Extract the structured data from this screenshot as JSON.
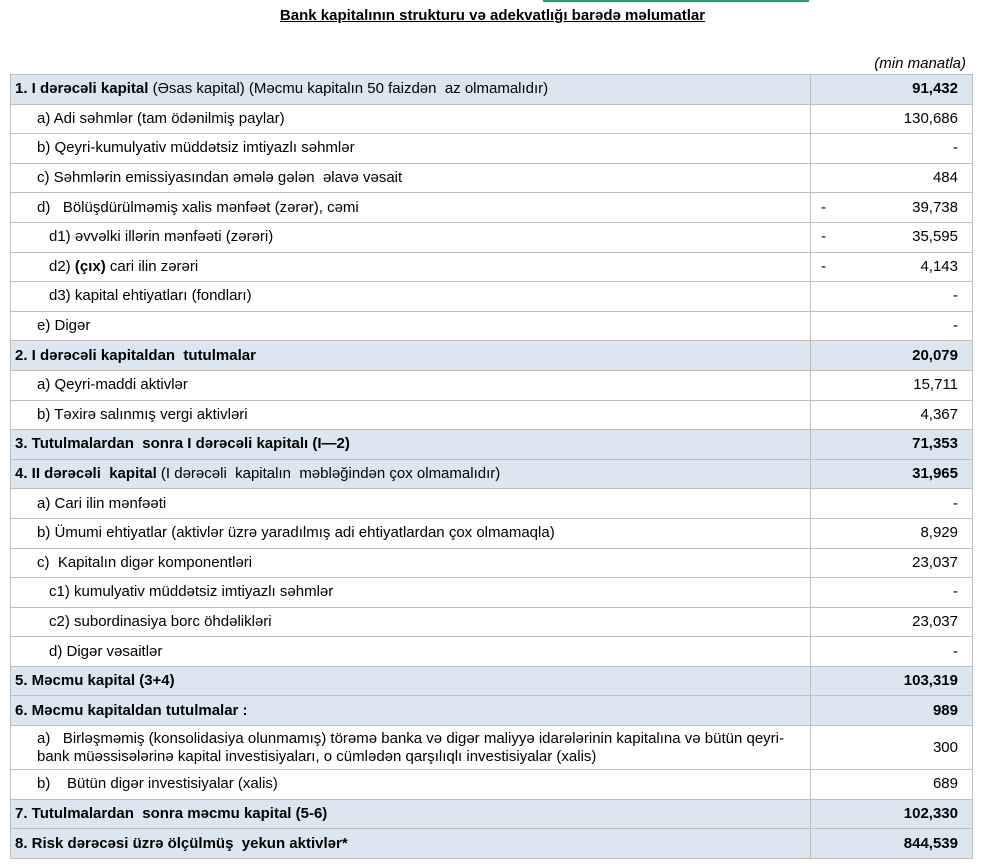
{
  "header": {
    "title": "Bank kapitalının strukturu və adekvatlığı barədə məlumatlar",
    "unit": "(min manatla)"
  },
  "table": {
    "rows": [
      {
        "total": true,
        "label": [
          {
            "text": "1. I dərəcəli kapital",
            "bold": true
          },
          {
            "text": " (Əsas kapital) (Məcmu kapitalın 50 faizdən  az olmamalıdır)"
          }
        ],
        "value": "91,432"
      },
      {
        "label": [
          {
            "text": "a) Adi səhmlər (tam ödənilmiş paylar)"
          }
        ],
        "value": "130,686"
      },
      {
        "label": [
          {
            "text": "b) Qeyri-kumulyativ müddətsiz imtiyazlı səhmlər"
          }
        ],
        "value": "-"
      },
      {
        "label": [
          {
            "text": "c) Səhmlərin emissiyasından əmələ gələn  əlavə vəsait"
          }
        ],
        "value": "484"
      },
      {
        "label": [
          {
            "text": "d)   Bölüşdürülməmiş xalis mənfəət (zərər), cəmi"
          }
        ],
        "sign": "-",
        "value": "39,738"
      },
      {
        "label": [
          {
            "text": "d1) əvvəlki illərin mənfəəti (zərəri)"
          }
        ],
        "sign": "-",
        "value": "35,595"
      },
      {
        "label": [
          {
            "text": "d2) "
          },
          {
            "text": "(çıx)",
            "bold": true
          },
          {
            "text": " cari ilin zərəri"
          }
        ],
        "sign": "-",
        "value": "4,143"
      },
      {
        "label": [
          {
            "text": "d3) kapital ehtiyatları (fondları)"
          }
        ],
        "value": "-"
      },
      {
        "label": [
          {
            "text": "e) Digər"
          }
        ],
        "value": "-"
      },
      {
        "total": true,
        "label": [
          {
            "text": "2. I dərəcəli kapitaldan  tutulmalar",
            "bold": true
          }
        ],
        "value": "20,079"
      },
      {
        "label": [
          {
            "text": "a) Qeyri-maddi aktivlər"
          }
        ],
        "value": "15,711"
      },
      {
        "label": [
          {
            "text": "b) Təxirə salınmış vergi aktivləri"
          }
        ],
        "value": "4,367"
      },
      {
        "total": true,
        "label": [
          {
            "text": "3. Tutulmalardan  sonra I dərəcəli kapitalı (I—2)",
            "bold": true
          }
        ],
        "value": "71,353"
      },
      {
        "total": true,
        "label": [
          {
            "text": "4. II dərəcəli  kapital",
            "bold": true
          },
          {
            "text": " (I dərəcəli  kapitalın  məbləğindən çox olmamalıdır)"
          }
        ],
        "value": "31,965"
      },
      {
        "label": [
          {
            "text": "a) Cari ilin mənfəəti"
          }
        ],
        "value": "-"
      },
      {
        "label": [
          {
            "text": "b) Ümumi ehtiyatlar (aktivlər üzrə yaradılmış adi ehtiyatlardan çox olmamaqla)"
          }
        ],
        "value": "8,929"
      },
      {
        "label": [
          {
            "text": "c)  Kapitalın digər komponentləri"
          }
        ],
        "value": "23,037"
      },
      {
        "label": [
          {
            "text": "c1) kumulyativ müddətsiz imtiyazlı səhmlər"
          }
        ],
        "value": "-"
      },
      {
        "label": [
          {
            "text": "c2) subordinasiya borc öhdəlikləri"
          }
        ],
        "value": "23,037"
      },
      {
        "label": [
          {
            "text": "d) Digər vəsaitlər"
          }
        ],
        "value": "-"
      },
      {
        "total": true,
        "label": [
          {
            "text": "5. Məcmu kapital (3+4)",
            "bold": true
          }
        ],
        "value": "103,319"
      },
      {
        "total": true,
        "label": [
          {
            "text": "6. Məcmu kapitaldan tutulmalar :",
            "bold": true
          }
        ],
        "value": "989"
      },
      {
        "label": [
          {
            "text": "a)   Birləşməmiş (konsolidasiya olunmamış) törəmə banka və digər maliyyə idarələrinin kapitalına və bütün qeyri-bank müəssisələrinə kapital investisiyaları, o cümlədən qarşılıqlı investisiyalar (xalis)"
          }
        ],
        "value": "300"
      },
      {
        "label": [
          {
            "text": "b)    Bütün digər investisiyalar (xalis)"
          }
        ],
        "value": "689"
      },
      {
        "total": true,
        "label": [
          {
            "text": "7. Tutulmalardan  sonra məcmu kapital (5-6)",
            "bold": true
          }
        ],
        "value": "102,330"
      },
      {
        "total": true,
        "label": [
          {
            "text": "8. Risk dərəcəsi üzrə ölçülmüş  yekun aktivlər*",
            "bold": true
          }
        ],
        "value": "844,539"
      }
    ]
  }
}
